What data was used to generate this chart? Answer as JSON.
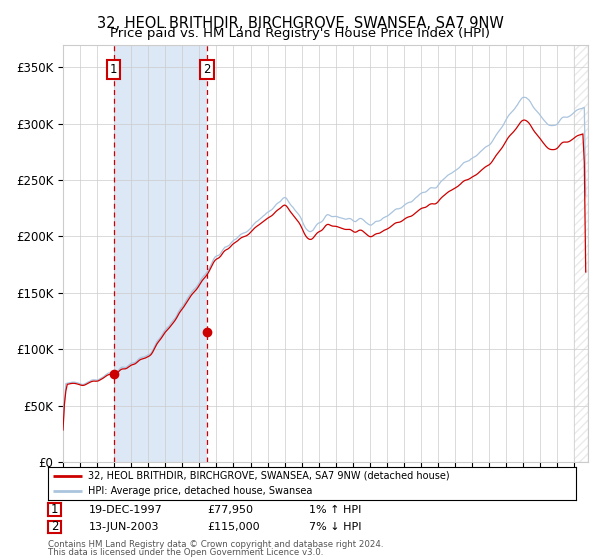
{
  "title1": "32, HEOL BRITHDIR, BIRCHGROVE, SWANSEA, SA7 9NW",
  "title2": "Price paid vs. HM Land Registry's House Price Index (HPI)",
  "ylim": [
    0,
    370000
  ],
  "yticks": [
    0,
    50000,
    100000,
    150000,
    200000,
    250000,
    300000,
    350000
  ],
  "ytick_labels": [
    "£0",
    "£50K",
    "£100K",
    "£150K",
    "£200K",
    "£250K",
    "£300K",
    "£350K"
  ],
  "xlim_start": 1995.0,
  "xlim_end": 2025.8,
  "sale1_date": 1997.97,
  "sale1_price": 77950,
  "sale1_label": "1",
  "sale2_date": 2003.45,
  "sale2_price": 115000,
  "sale2_label": "2",
  "legend_line1": "32, HEOL BRITHDIR, BIRCHGROVE, SWANSEA, SA7 9NW (detached house)",
  "legend_line2": "HPI: Average price, detached house, Swansea",
  "table_row1_num": "1",
  "table_row1_date": "19-DEC-1997",
  "table_row1_price": "£77,950",
  "table_row1_hpi": "1% ↑ HPI",
  "table_row2_num": "2",
  "table_row2_date": "13-JUN-2003",
  "table_row2_price": "£115,000",
  "table_row2_hpi": "7% ↓ HPI",
  "footnote1": "Contains HM Land Registry data © Crown copyright and database right 2024.",
  "footnote2": "This data is licensed under the Open Government Licence v3.0.",
  "hpi_color": "#aac4de",
  "property_color": "#cc0000",
  "shade_color": "#dce8f5",
  "grid_color": "#cccccc",
  "bg_color": "#ffffff"
}
